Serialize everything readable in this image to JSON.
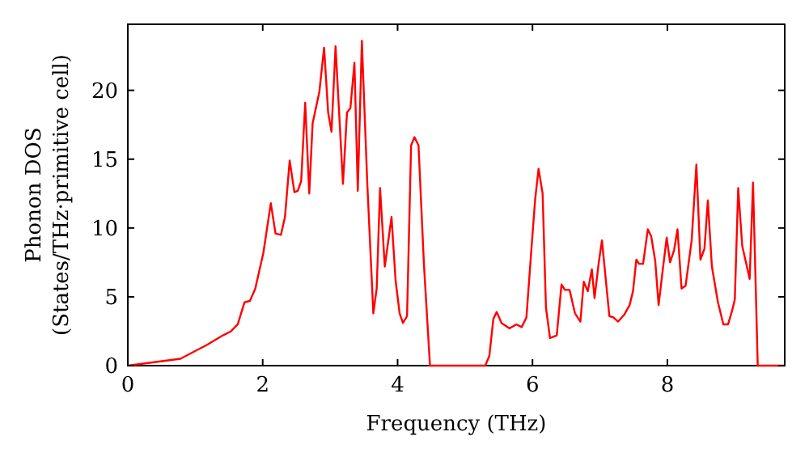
{
  "chart_data": {
    "type": "line",
    "xlabel": "Frequency (THz)",
    "ylabel": "Phonon DOS\n(States/THz·primitive cell)",
    "xlim": [
      0,
      9.74
    ],
    "ylim": [
      0,
      24.8
    ],
    "xticks": [
      0,
      2,
      4,
      6,
      8
    ],
    "yticks": [
      0,
      5,
      10,
      15,
      20
    ],
    "grid": false,
    "marker": "none",
    "line_style": "solid",
    "series": [
      {
        "color": "#ff0000",
        "x": [
          0,
          0.78,
          1.17,
          1.41,
          1.53,
          1.63,
          1.73,
          1.81,
          1.89,
          2.01,
          2.12,
          2.19,
          2.27,
          2.33,
          2.4,
          2.47,
          2.52,
          2.57,
          2.63,
          2.69,
          2.74,
          2.84,
          2.91,
          2.97,
          3.02,
          3.08,
          3.19,
          3.25,
          3.3,
          3.36,
          3.41,
          3.47,
          3.55,
          3.64,
          3.69,
          3.74,
          3.81,
          3.91,
          3.97,
          4.03,
          4.08,
          4.14,
          4.2,
          4.25,
          4.31,
          4.39,
          4.48,
          5.3,
          5.36,
          5.42,
          5.47,
          5.54,
          5.66,
          5.76,
          5.84,
          5.91,
          5.98,
          6.04,
          6.09,
          6.15,
          6.2,
          6.26,
          6.36,
          6.43,
          6.48,
          6.55,
          6.63,
          6.71,
          6.76,
          6.82,
          6.88,
          6.92,
          6.98,
          7.03,
          7.14,
          7.2,
          7.27,
          7.36,
          7.44,
          7.49,
          7.54,
          7.58,
          7.64,
          7.71,
          7.76,
          7.82,
          7.87,
          7.93,
          7.99,
          8.04,
          8.1,
          8.15,
          8.21,
          8.27,
          8.36,
          8.43,
          8.49,
          8.55,
          8.6,
          8.66,
          8.75,
          8.83,
          8.9,
          8.96,
          9.0,
          9.05,
          9.11,
          9.22,
          9.27,
          9.34,
          9.74
        ],
        "values": [
          0,
          0.5,
          1.5,
          2.2,
          2.5,
          3.0,
          4.6,
          4.7,
          5.6,
          8.2,
          11.8,
          9.6,
          9.5,
          10.8,
          14.9,
          12.6,
          12.7,
          13.4,
          19.1,
          12.5,
          17.6,
          19.9,
          23.1,
          18.4,
          17.0,
          23.2,
          13.2,
          18.4,
          18.7,
          22.0,
          12.7,
          23.6,
          13.3,
          3.8,
          5.6,
          12.9,
          7.2,
          10.8,
          6.2,
          3.8,
          3.1,
          3.6,
          16.0,
          16.6,
          16.0,
          7.4,
          0,
          0,
          0.7,
          3.4,
          3.9,
          3.1,
          2.7,
          3.0,
          2.8,
          3.5,
          8.2,
          12.1,
          14.3,
          12.5,
          4.2,
          2.0,
          2.2,
          5.9,
          5.5,
          5.5,
          3.8,
          3.2,
          6.1,
          5.4,
          7.0,
          4.9,
          7.4,
          9.1,
          3.6,
          3.5,
          3.2,
          3.7,
          4.4,
          5.4,
          7.7,
          7.4,
          7.4,
          9.9,
          9.4,
          7.6,
          4.4,
          6.9,
          9.3,
          7.5,
          8.4,
          9.9,
          5.6,
          5.8,
          9.1,
          14.6,
          7.7,
          8.5,
          12.0,
          7.2,
          4.6,
          3.0,
          3.0,
          4.0,
          4.8,
          12.9,
          8.7,
          6.3,
          13.3,
          0,
          0
        ]
      }
    ]
  }
}
